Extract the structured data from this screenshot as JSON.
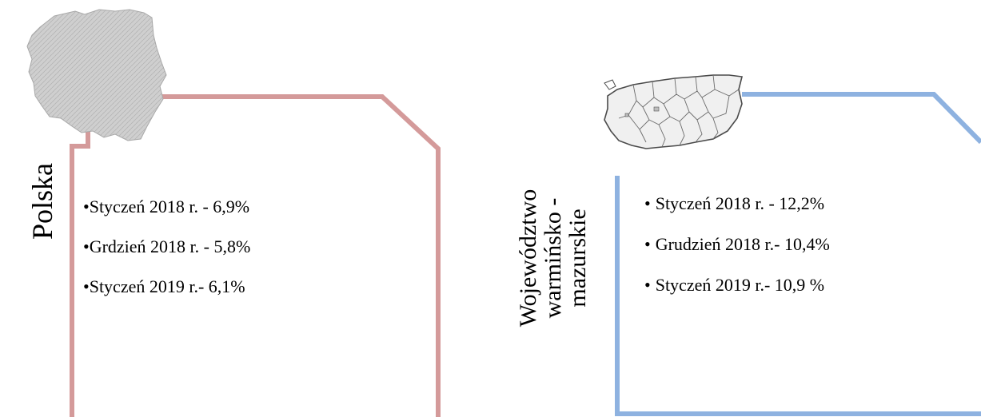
{
  "colors": {
    "panel_poland": "#d49a9a",
    "panel_region": "#8eb2e0",
    "map_fill": "#c8c8c8",
    "map_region_fill": "#eeeeee",
    "map_border": "#555555"
  },
  "poland": {
    "title": "Polska",
    "bullet": "•",
    "items": [
      "Styczeń 2018 r. - 6,9%",
      "Grdzień 2018 r. - 5,8%",
      "Styczeń 2019 r.- 6,1%"
    ],
    "map_icon": "poland-map-icon"
  },
  "region": {
    "title_lines": [
      "Województwo",
      "warmińsko -",
      "mazurskie"
    ],
    "bullet": "•",
    "items": [
      "Styczeń 2018 r. - 12,2%",
      "Grudzień 2018 r.- 10,4%",
      "Styczeń 2019 r.- 10,9 %"
    ],
    "map_icon": "warmia-mazury-map-icon"
  }
}
